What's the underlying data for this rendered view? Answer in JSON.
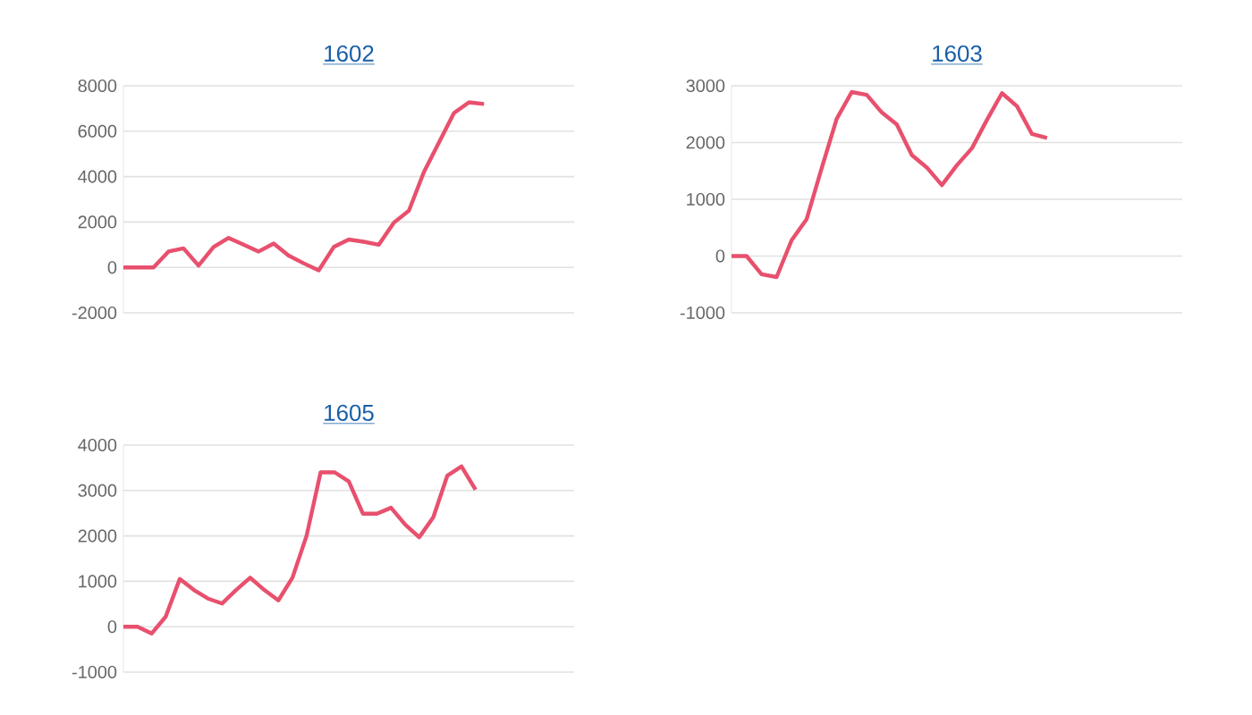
{
  "chart_data": [
    {
      "type": "line",
      "title": "1602",
      "tick_labels": "y",
      "grid": "y",
      "marker": "none",
      "line_style": "solid",
      "ylim": [
        -2000,
        8000
      ],
      "yticks": [
        -2000,
        0,
        2000,
        4000,
        6000,
        8000
      ],
      "categories": [
        null,
        null,
        null,
        null,
        null,
        null,
        null,
        null,
        null,
        null,
        null,
        null,
        null,
        null,
        null,
        null,
        null,
        null,
        null,
        null,
        null,
        null,
        null,
        null,
        null,
        null,
        null,
        null,
        null,
        null,
        null
      ],
      "series": [
        {
          "color": "#e8506e",
          "values": [
            0,
            0,
            0,
            700,
            840,
            80,
            900,
            1300,
            1000,
            700,
            1050,
            520,
            180,
            -130,
            900,
            1230,
            1130,
            1000,
            1970,
            2500,
            4200,
            5500,
            6800,
            7270,
            7200,
            null,
            null,
            null,
            null,
            null,
            null
          ]
        }
      ]
    },
    {
      "type": "line",
      "title": "1603",
      "tick_labels": "y",
      "grid": "y",
      "marker": "none",
      "line_style": "solid",
      "ylim": [
        -1000,
        3000
      ],
      "yticks": [
        -1000,
        0,
        1000,
        2000,
        3000
      ],
      "categories": [
        null,
        null,
        null,
        null,
        null,
        null,
        null,
        null,
        null,
        null,
        null,
        null,
        null,
        null,
        null,
        null,
        null,
        null,
        null,
        null,
        null,
        null,
        null,
        null,
        null,
        null,
        null,
        null,
        null,
        null,
        null
      ],
      "series": [
        {
          "color": "#e8506e",
          "values": [
            0,
            0,
            -320,
            -370,
            280,
            650,
            1550,
            2420,
            2890,
            2840,
            2530,
            2320,
            1780,
            1560,
            1250,
            1600,
            1900,
            2400,
            2870,
            2640,
            2150,
            2080,
            null,
            null,
            null,
            null,
            null,
            null,
            null,
            null,
            null
          ]
        }
      ]
    },
    {
      "type": "line",
      "title": "1605",
      "tick_labels": "y",
      "grid": "y",
      "marker": "none",
      "line_style": "solid",
      "ylim": [
        -1000,
        4000
      ],
      "yticks": [
        -1000,
        0,
        1000,
        2000,
        3000,
        4000
      ],
      "categories": [
        null,
        null,
        null,
        null,
        null,
        null,
        null,
        null,
        null,
        null,
        null,
        null,
        null,
        null,
        null,
        null,
        null,
        null,
        null,
        null,
        null,
        null,
        null,
        null,
        null,
        null,
        null,
        null,
        null,
        null,
        null,
        null,
        null
      ],
      "series": [
        {
          "color": "#e8506e",
          "values": [
            0,
            0,
            -150,
            220,
            1050,
            810,
            620,
            510,
            810,
            1080,
            810,
            580,
            1080,
            2000,
            3400,
            3400,
            3200,
            2490,
            2490,
            2620,
            2250,
            1970,
            2410,
            3330,
            3530,
            3020,
            null,
            null,
            null,
            null,
            null,
            null,
            null
          ]
        }
      ]
    }
  ]
}
